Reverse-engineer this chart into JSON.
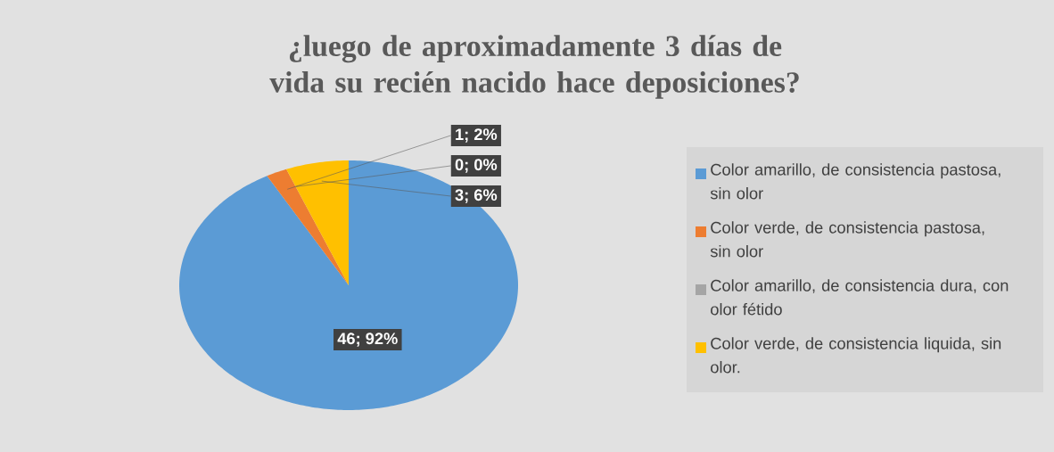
{
  "chart_data": {
    "type": "pie",
    "title": "¿luego de aproximadamente 3 días de vida su recién nacido hace deposiciones?",
    "categories": [
      "Color amarillo, de consistencia pastosa, sin olor",
      "Color verde, de consistencia pastosa, sin olor",
      "Color amarillo, de consistencia dura, con olor fétido",
      "Color verde, de consistencia liquida, sin olor."
    ],
    "values": [
      46,
      1,
      0,
      3
    ],
    "value_labels": [
      "46; 92%",
      "1; 2%",
      "0; 0%",
      "3; 6%"
    ],
    "colors": [
      "#5b9bd5",
      "#ed7d31",
      "#a5a5a5",
      "#ffc000"
    ],
    "legend": "right"
  }
}
